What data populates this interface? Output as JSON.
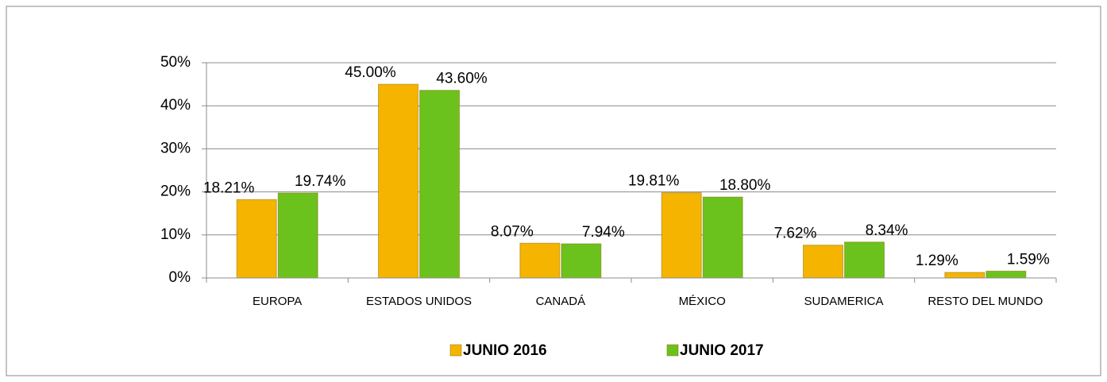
{
  "chart_data": {
    "type": "bar",
    "categories": [
      "EUROPA",
      "ESTADOS UNIDOS",
      "CANADÁ",
      "MÉXICO",
      "SUDAMERICA",
      "RESTO DEL MUNDO"
    ],
    "series": [
      {
        "name": "JUNIO 2016",
        "color": "#f5b400",
        "values": [
          18.21,
          45.0,
          8.07,
          19.81,
          7.62,
          1.29
        ],
        "value_labels": [
          "18.21%",
          "45.00%",
          "8.07%",
          "19.81%",
          "7.62%",
          "1.29%"
        ]
      },
      {
        "name": "JUNIO 2017",
        "color": "#6cc21c",
        "values": [
          19.74,
          43.6,
          7.94,
          18.8,
          8.34,
          1.59
        ],
        "value_labels": [
          "19.74%",
          "43.60%",
          "7.94%",
          "18.80%",
          "8.34%",
          "1.59%"
        ]
      }
    ],
    "ylim": [
      0,
      50
    ],
    "yticks": [
      {
        "value": 0,
        "label": "0%"
      },
      {
        "value": 10,
        "label": "10%"
      },
      {
        "value": 20,
        "label": "20%"
      },
      {
        "value": 30,
        "label": "30%"
      },
      {
        "value": 40,
        "label": "40%"
      },
      {
        "value": 50,
        "label": "50%"
      }
    ],
    "grid": true,
    "legend": "bottom"
  }
}
